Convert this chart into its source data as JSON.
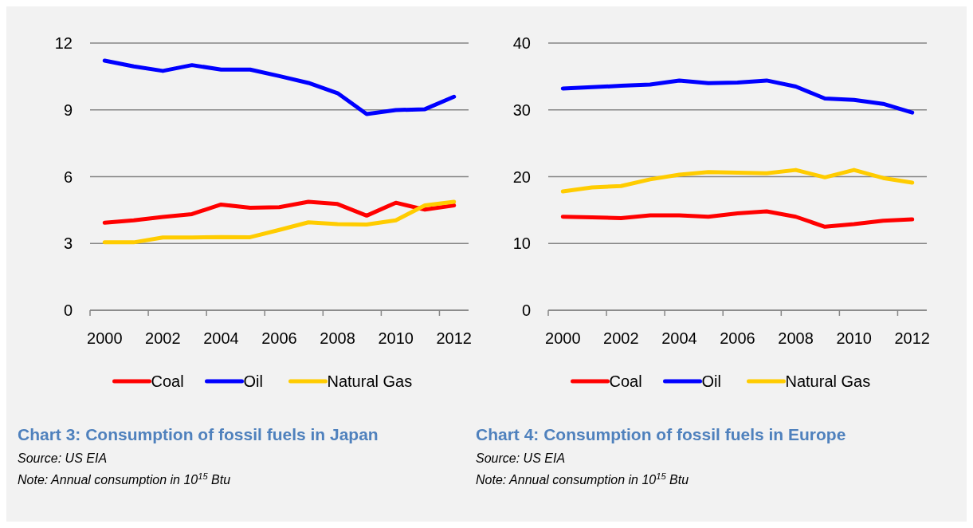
{
  "chart_data": [
    {
      "type": "line",
      "title": "Chart 3: Consumption of fossil fuels in Japan",
      "annotations": [
        "Source: US EIA",
        "Note: Annual consumption in 10$^{15}$ Btu"
      ],
      "categories": [
        "2000",
        null,
        "2002",
        null,
        "2004",
        null,
        "2006",
        null,
        "2008",
        null,
        "2010",
        null,
        "2012"
      ],
      "series": [
        {
          "name": "Coal",
          "color": "#ff0000",
          "values": [
            3.93,
            4.04,
            4.19,
            4.32,
            4.75,
            4.6,
            4.63,
            4.87,
            4.77,
            4.25,
            4.83,
            4.52,
            4.71
          ]
        },
        {
          "name": "Oil",
          "color": "#0000ff",
          "values": [
            11.21,
            10.95,
            10.75,
            11.01,
            10.81,
            10.81,
            10.52,
            10.21,
            9.75,
            8.81,
            8.99,
            9.03,
            9.59
          ]
        },
        {
          "name": "Natural Gas",
          "color": "#ffcc00",
          "values": [
            3.05,
            3.05,
            3.27,
            3.27,
            3.29,
            3.28,
            3.61,
            3.95,
            3.87,
            3.85,
            4.04,
            4.71,
            4.87
          ]
        }
      ],
      "ylim": [
        0,
        12
      ],
      "yticks": [
        0,
        3,
        6,
        9,
        12
      ],
      "grid": "y",
      "legend": "bottom"
    },
    {
      "type": "line",
      "title": "Chart 4: Consumption of fossil fuels in Europe",
      "annotations": [
        "Source: US EIA",
        "Note: Annual consumption in 10$^{15}$ Btu"
      ],
      "categories": [
        "2000",
        null,
        "2002",
        null,
        "2004",
        null,
        "2006",
        null,
        "2008",
        null,
        "2010",
        null,
        "2012"
      ],
      "series": [
        {
          "name": "Coal",
          "color": "#ff0000",
          "values": [
            14.0,
            13.9,
            13.8,
            14.2,
            14.2,
            14.0,
            14.5,
            14.8,
            14.0,
            12.5,
            12.9,
            13.4,
            13.6
          ]
        },
        {
          "name": "Oil",
          "color": "#0000ff",
          "values": [
            33.2,
            33.4,
            33.6,
            33.8,
            34.4,
            34.0,
            34.1,
            34.4,
            33.5,
            31.7,
            31.5,
            30.9,
            29.6
          ]
        },
        {
          "name": "Natural Gas",
          "color": "#ffcc00",
          "values": [
            17.8,
            18.4,
            18.6,
            19.6,
            20.3,
            20.7,
            20.6,
            20.5,
            21.0,
            19.9,
            21.0,
            19.8,
            19.1
          ]
        }
      ],
      "ylim": [
        0,
        40
      ],
      "yticks": [
        0,
        10,
        20,
        30,
        40
      ],
      "grid": "y",
      "legend": "bottom"
    }
  ]
}
